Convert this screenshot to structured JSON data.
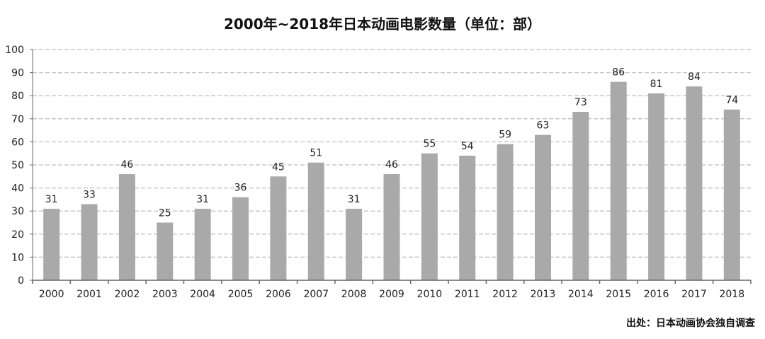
{
  "chart_data": {
    "type": "bar",
    "title": "2000年~2018年日本动画电影数量（单位：部）",
    "categories": [
      "2000",
      "2001",
      "2002",
      "2003",
      "2004",
      "2005",
      "2006",
      "2007",
      "2008",
      "2009",
      "2010",
      "2011",
      "2012",
      "2013",
      "2014",
      "2015",
      "2016",
      "2017",
      "2018"
    ],
    "values": [
      31,
      33,
      46,
      25,
      31,
      36,
      45,
      51,
      31,
      46,
      55,
      54,
      59,
      63,
      73,
      86,
      81,
      84,
      74
    ],
    "xlabel": "",
    "ylabel": "",
    "ylim": [
      0,
      100
    ],
    "yticks": [
      0,
      10,
      20,
      30,
      40,
      50,
      60,
      70,
      80,
      90,
      100
    ],
    "grid": true,
    "bar_color": "#a9a9a9",
    "grid_color": "#c8c8c8",
    "source": "出处：日本动画协会独自调查"
  }
}
